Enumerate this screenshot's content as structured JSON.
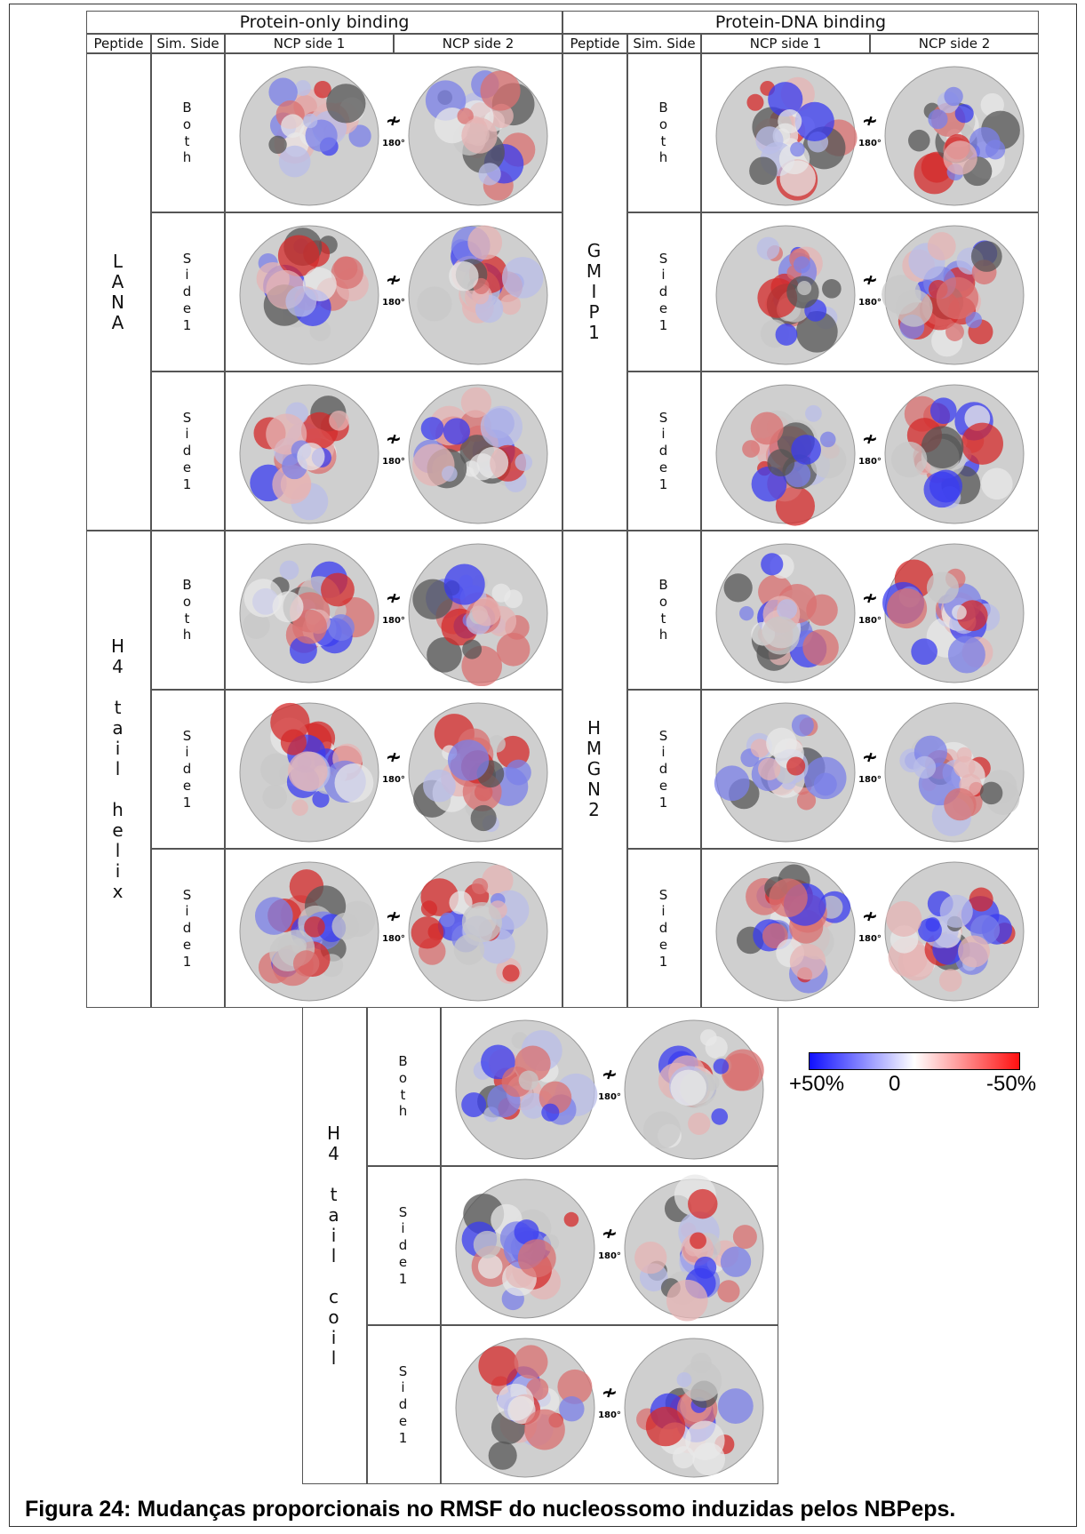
{
  "top_table": {
    "sections": [
      {
        "title": "Protein-only binding",
        "headers": [
          "Peptide",
          "Sim. Side",
          "NCP side 1",
          "NCP side 2"
        ],
        "blocks": [
          {
            "peptide": "LANA",
            "rows": [
              "Both",
              "Side1",
              "Side1"
            ]
          },
          {
            "peptide": "H4 tail helix",
            "rows": [
              "Both",
              "Side1",
              "Side1"
            ]
          }
        ]
      },
      {
        "title": "Protein-DNA binding",
        "headers": [
          "Peptide",
          "Sim. Side",
          "NCP side 1",
          "NCP side 2"
        ],
        "blocks": [
          {
            "peptide": "GMIP1",
            "rows": [
              "Both",
              "Side1",
              "Side1"
            ]
          },
          {
            "peptide": "HMGN2",
            "rows": [
              "Both",
              "Side1",
              "Side1"
            ]
          }
        ]
      }
    ]
  },
  "bottom_table": {
    "peptide": "H4 tail coil",
    "rows": [
      "Both",
      "Side1",
      "Side1"
    ]
  },
  "rotation_label": "180°",
  "colorbar": {
    "labels": [
      "+50%",
      "0",
      "-50%"
    ]
  },
  "caption": "Figura 24: Mudanças proporcionais no RMSF do nucleossomo induzidas pelos NBPeps."
}
